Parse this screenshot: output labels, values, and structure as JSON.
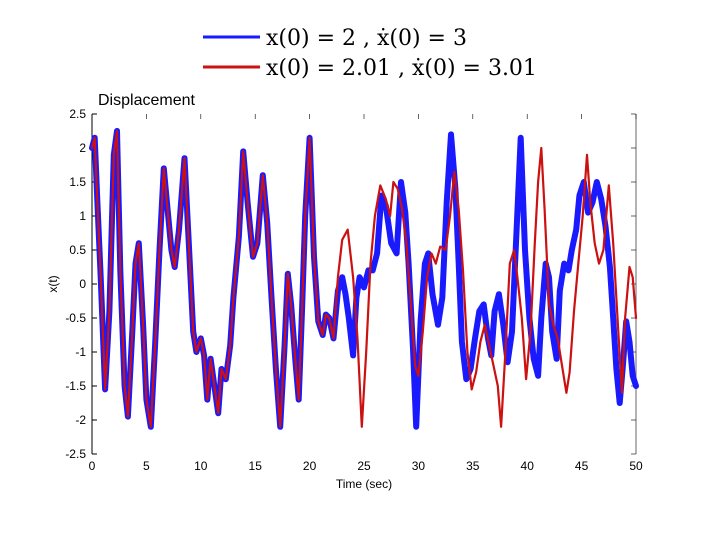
{
  "chart_data": {
    "type": "line",
    "title": "Displacement",
    "xlabel": "Time (sec)",
    "ylabel": "x(t)",
    "xlim": [
      0,
      50
    ],
    "ylim": [
      -2.5,
      2.5
    ],
    "xticks": [
      0,
      5,
      10,
      15,
      20,
      25,
      30,
      35,
      40,
      45,
      50
    ],
    "yticks": [
      2.5,
      2,
      1.5,
      1,
      0.5,
      0,
      -0.5,
      -1,
      -1.5,
      -2,
      -2.5
    ],
    "legend_position": "top-center",
    "grid": false,
    "series": [
      {
        "name": "x(0) = 2 , ẋ(0) = 3",
        "color": "#1a1aff",
        "points": [
          [
            0,
            2.0
          ],
          [
            0.25,
            2.15
          ],
          [
            0.5,
            1.2
          ],
          [
            0.8,
            0.1
          ],
          [
            1.2,
            -1.55
          ],
          [
            1.6,
            -0.4
          ],
          [
            2.0,
            1.9
          ],
          [
            2.3,
            2.25
          ],
          [
            2.6,
            0.2
          ],
          [
            3.0,
            -1.5
          ],
          [
            3.3,
            -1.95
          ],
          [
            3.7,
            -0.7
          ],
          [
            4.0,
            0.3
          ],
          [
            4.3,
            0.6
          ],
          [
            4.7,
            -0.6
          ],
          [
            5.0,
            -1.7
          ],
          [
            5.4,
            -2.1
          ],
          [
            5.8,
            -0.9
          ],
          [
            6.2,
            0.5
          ],
          [
            6.6,
            1.7
          ],
          [
            7.0,
            1.0
          ],
          [
            7.3,
            0.5
          ],
          [
            7.6,
            0.25
          ],
          [
            8.0,
            0.8
          ],
          [
            8.5,
            1.85
          ],
          [
            8.9,
            0.6
          ],
          [
            9.3,
            -0.7
          ],
          [
            9.6,
            -1.0
          ],
          [
            10.0,
            -0.8
          ],
          [
            10.3,
            -1.05
          ],
          [
            10.6,
            -1.7
          ],
          [
            10.9,
            -1.1
          ],
          [
            11.2,
            -1.45
          ],
          [
            11.6,
            -1.9
          ],
          [
            11.9,
            -1.25
          ],
          [
            12.3,
            -1.4
          ],
          [
            12.7,
            -0.9
          ],
          [
            13.0,
            -0.2
          ],
          [
            13.5,
            0.7
          ],
          [
            13.9,
            1.95
          ],
          [
            14.3,
            1.2
          ],
          [
            14.8,
            0.4
          ],
          [
            15.2,
            0.6
          ],
          [
            15.7,
            1.6
          ],
          [
            16.1,
            0.9
          ],
          [
            16.5,
            -0.2
          ],
          [
            16.9,
            -1.25
          ],
          [
            17.3,
            -2.1
          ],
          [
            17.7,
            -0.9
          ],
          [
            18.0,
            0.15
          ],
          [
            18.3,
            -0.3
          ],
          [
            18.7,
            -1.15
          ],
          [
            19.0,
            -1.7
          ],
          [
            19.3,
            -0.4
          ],
          [
            19.6,
            1.0
          ],
          [
            20.0,
            2.15
          ],
          [
            20.4,
            0.4
          ],
          [
            20.8,
            -0.55
          ],
          [
            21.2,
            -0.75
          ],
          [
            21.5,
            -0.45
          ],
          [
            21.8,
            -0.5
          ],
          [
            22.2,
            -0.8
          ],
          [
            22.6,
            -0.1
          ],
          [
            23.0,
            0.1
          ],
          [
            23.3,
            -0.15
          ],
          [
            23.6,
            -0.5
          ],
          [
            24.0,
            -1.05
          ],
          [
            24.3,
            -0.2
          ],
          [
            24.6,
            0.1
          ],
          [
            25.0,
            -0.05
          ],
          [
            25.4,
            0.2
          ],
          [
            25.8,
            0.2
          ],
          [
            26.2,
            0.45
          ],
          [
            26.6,
            1.3
          ],
          [
            27.0,
            1.15
          ],
          [
            27.5,
            0.6
          ],
          [
            28.0,
            0.45
          ],
          [
            28.4,
            1.5
          ],
          [
            28.8,
            1.05
          ],
          [
            29.1,
            0.3
          ],
          [
            29.5,
            -0.95
          ],
          [
            29.8,
            -2.1
          ],
          [
            30.2,
            -0.55
          ],
          [
            30.6,
            0.3
          ],
          [
            30.9,
            0.45
          ],
          [
            31.3,
            -0.15
          ],
          [
            31.8,
            -0.6
          ],
          [
            32.2,
            -0.2
          ],
          [
            32.6,
            1.2
          ],
          [
            33.0,
            2.2
          ],
          [
            33.4,
            1.4
          ],
          [
            33.7,
            0.3
          ],
          [
            34.0,
            -0.85
          ],
          [
            34.4,
            -1.4
          ],
          [
            34.8,
            -1.25
          ],
          [
            35.2,
            -0.8
          ],
          [
            35.6,
            -0.4
          ],
          [
            36.0,
            -0.3
          ],
          [
            36.4,
            -0.8
          ],
          [
            36.7,
            -1.05
          ],
          [
            37.0,
            -0.4
          ],
          [
            37.4,
            -0.15
          ],
          [
            37.8,
            -0.6
          ],
          [
            38.2,
            -1.15
          ],
          [
            38.6,
            -0.7
          ],
          [
            39.0,
            0.7
          ],
          [
            39.4,
            2.15
          ],
          [
            39.8,
            0.5
          ],
          [
            40.2,
            -0.5
          ],
          [
            40.6,
            -1.1
          ],
          [
            41.0,
            -1.35
          ],
          [
            41.3,
            -0.5
          ],
          [
            41.7,
            0.3
          ],
          [
            42.0,
            0.1
          ],
          [
            42.3,
            -0.7
          ],
          [
            42.7,
            -1.1
          ],
          [
            43.0,
            -0.1
          ],
          [
            43.4,
            0.3
          ],
          [
            43.8,
            0.2
          ],
          [
            44.1,
            0.5
          ],
          [
            44.5,
            0.8
          ],
          [
            44.8,
            1.3
          ],
          [
            45.2,
            1.5
          ],
          [
            45.6,
            1.05
          ],
          [
            46.0,
            1.2
          ],
          [
            46.4,
            1.5
          ],
          [
            46.8,
            1.25
          ],
          [
            47.2,
            0.85
          ],
          [
            47.6,
            0.25
          ],
          [
            47.9,
            -0.5
          ],
          [
            48.2,
            -1.25
          ],
          [
            48.5,
            -1.75
          ],
          [
            48.8,
            -1.2
          ],
          [
            49.1,
            -0.55
          ],
          [
            49.4,
            -0.85
          ],
          [
            49.7,
            -1.35
          ],
          [
            50.0,
            -1.5
          ]
        ]
      },
      {
        "name": "x(0) = 2.01 , ẋ(0) = 3.01",
        "color": "#cc1111",
        "points": [
          [
            0,
            2.0
          ],
          [
            0.25,
            2.15
          ],
          [
            0.5,
            1.2
          ],
          [
            0.8,
            0.1
          ],
          [
            1.2,
            -1.55
          ],
          [
            1.6,
            -0.4
          ],
          [
            2.0,
            1.9
          ],
          [
            2.3,
            2.25
          ],
          [
            2.6,
            0.2
          ],
          [
            3.0,
            -1.5
          ],
          [
            3.3,
            -1.95
          ],
          [
            3.7,
            -0.7
          ],
          [
            4.0,
            0.3
          ],
          [
            4.3,
            0.6
          ],
          [
            4.7,
            -0.6
          ],
          [
            5.0,
            -1.7
          ],
          [
            5.4,
            -2.1
          ],
          [
            5.8,
            -0.9
          ],
          [
            6.2,
            0.5
          ],
          [
            6.6,
            1.7
          ],
          [
            7.0,
            1.0
          ],
          [
            7.3,
            0.5
          ],
          [
            7.6,
            0.25
          ],
          [
            8.0,
            0.8
          ],
          [
            8.5,
            1.85
          ],
          [
            8.9,
            0.6
          ],
          [
            9.3,
            -0.7
          ],
          [
            9.6,
            -1.0
          ],
          [
            10.0,
            -0.8
          ],
          [
            10.3,
            -1.05
          ],
          [
            10.6,
            -1.7
          ],
          [
            10.9,
            -1.1
          ],
          [
            11.2,
            -1.45
          ],
          [
            11.6,
            -1.9
          ],
          [
            11.9,
            -1.25
          ],
          [
            12.3,
            -1.4
          ],
          [
            12.7,
            -0.9
          ],
          [
            13.0,
            -0.2
          ],
          [
            13.5,
            0.7
          ],
          [
            13.9,
            1.95
          ],
          [
            14.3,
            1.2
          ],
          [
            14.8,
            0.4
          ],
          [
            15.2,
            0.6
          ],
          [
            15.7,
            1.6
          ],
          [
            16.1,
            0.9
          ],
          [
            16.5,
            -0.2
          ],
          [
            16.9,
            -1.25
          ],
          [
            17.3,
            -2.1
          ],
          [
            17.7,
            -0.9
          ],
          [
            18.0,
            0.15
          ],
          [
            18.3,
            -0.3
          ],
          [
            18.7,
            -1.15
          ],
          [
            19.0,
            -1.7
          ],
          [
            19.3,
            -0.4
          ],
          [
            19.6,
            1.0
          ],
          [
            20.0,
            2.15
          ],
          [
            20.4,
            0.4
          ],
          [
            20.8,
            -0.55
          ],
          [
            21.2,
            -0.75
          ],
          [
            21.5,
            -0.45
          ],
          [
            21.8,
            -0.5
          ],
          [
            22.2,
            -0.8
          ],
          [
            22.6,
            0.1
          ],
          [
            23.0,
            0.65
          ],
          [
            23.5,
            0.8
          ],
          [
            24.0,
            0.1
          ],
          [
            24.4,
            -0.8
          ],
          [
            24.8,
            -2.1
          ],
          [
            25.2,
            -1.0
          ],
          [
            25.6,
            0.3
          ],
          [
            26.0,
            1.0
          ],
          [
            26.5,
            1.45
          ],
          [
            27.0,
            1.25
          ],
          [
            27.4,
            1.0
          ],
          [
            27.7,
            1.5
          ],
          [
            28.1,
            1.4
          ],
          [
            28.5,
            1.1
          ],
          [
            28.9,
            0.6
          ],
          [
            29.3,
            -0.3
          ],
          [
            29.7,
            -1.2
          ],
          [
            30.0,
            -1.35
          ],
          [
            30.4,
            -0.7
          ],
          [
            30.8,
            0.1
          ],
          [
            31.2,
            0.45
          ],
          [
            31.6,
            0.3
          ],
          [
            32.0,
            0.55
          ],
          [
            32.5,
            0.5
          ],
          [
            32.9,
            1.0
          ],
          [
            33.3,
            1.65
          ],
          [
            33.7,
            1.1
          ],
          [
            34.1,
            0.2
          ],
          [
            34.5,
            -1.0
          ],
          [
            34.9,
            -1.55
          ],
          [
            35.3,
            -1.3
          ],
          [
            35.7,
            -0.85
          ],
          [
            36.1,
            -0.6
          ],
          [
            36.5,
            -0.9
          ],
          [
            36.9,
            -1.2
          ],
          [
            37.3,
            -1.5
          ],
          [
            37.6,
            -2.1
          ],
          [
            38.0,
            -1.0
          ],
          [
            38.4,
            0.3
          ],
          [
            38.8,
            0.5
          ],
          [
            39.1,
            0.1
          ],
          [
            39.5,
            -0.5
          ],
          [
            39.9,
            -1.4
          ],
          [
            40.3,
            -0.7
          ],
          [
            40.7,
            0.6
          ],
          [
            41.0,
            1.5
          ],
          [
            41.3,
            2.0
          ],
          [
            41.6,
            1.1
          ],
          [
            42.0,
            -0.3
          ],
          [
            42.4,
            -0.6
          ],
          [
            42.8,
            -0.8
          ],
          [
            43.2,
            -1.2
          ],
          [
            43.6,
            -1.6
          ],
          [
            43.9,
            -1.3
          ],
          [
            44.3,
            -0.4
          ],
          [
            44.7,
            0.3
          ],
          [
            45.1,
            1.0
          ],
          [
            45.5,
            1.9
          ],
          [
            45.8,
            1.2
          ],
          [
            46.2,
            0.6
          ],
          [
            46.6,
            0.3
          ],
          [
            47.0,
            0.5
          ],
          [
            47.5,
            1.45
          ],
          [
            47.9,
            0.6
          ],
          [
            48.3,
            -0.5
          ],
          [
            48.7,
            -1.6
          ],
          [
            49.0,
            -0.5
          ],
          [
            49.4,
            0.25
          ],
          [
            49.7,
            0.1
          ],
          [
            50.0,
            -0.5
          ]
        ]
      }
    ]
  }
}
